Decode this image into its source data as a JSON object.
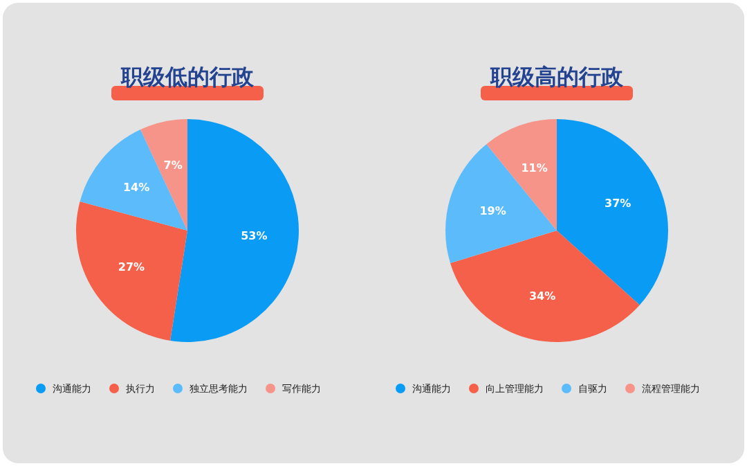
{
  "chart_data": [
    {
      "type": "pie",
      "title": "职级低的行政",
      "categories": [
        "沟通能力",
        "执行力",
        "独立思考能力",
        "写作能力"
      ],
      "values": [
        53,
        27,
        14,
        7
      ],
      "value_labels": [
        "53%",
        "27%",
        "14%",
        "7%"
      ],
      "colors": [
        "#0a9cf5",
        "#f5604a",
        "#5cbcfb",
        "#f7948a"
      ],
      "legend": "bottom"
    },
    {
      "type": "pie",
      "title": "职级高的行政",
      "categories": [
        "沟通能力",
        "向上管理能力",
        "自驱力",
        "流程管理能力"
      ],
      "values": [
        37,
        34,
        19,
        11
      ],
      "value_labels": [
        "37%",
        "34%",
        "19%",
        "11%"
      ],
      "colors": [
        "#0a9cf5",
        "#f5604a",
        "#5cbcfb",
        "#f7948a"
      ],
      "legend": "bottom"
    }
  ]
}
